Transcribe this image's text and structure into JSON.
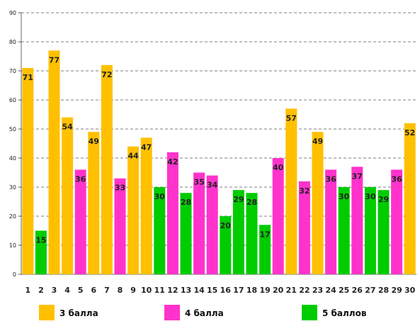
{
  "chart_data": {
    "type": "bar",
    "title": "",
    "xlabel": "",
    "ylabel": "",
    "ylim": [
      0,
      90
    ],
    "y_ticks": [
      0,
      10,
      20,
      30,
      40,
      50,
      60,
      70,
      80,
      90
    ],
    "grid": "horizontal-dashed",
    "legend_placement": "bottom",
    "categories": [
      "1",
      "2",
      "3",
      "4",
      "5",
      "6",
      "7",
      "8",
      "9",
      "10",
      "11",
      "12",
      "13",
      "14",
      "15",
      "16",
      "17",
      "18",
      "19",
      "20",
      "21",
      "22",
      "23",
      "24",
      "25",
      "26",
      "27",
      "28",
      "29",
      "30"
    ],
    "values": [
      71,
      15,
      77,
      54,
      36,
      49,
      72,
      33,
      44,
      47,
      30,
      42,
      28,
      35,
      34,
      20,
      29,
      28,
      17,
      40,
      57,
      32,
      49,
      36,
      30,
      37,
      30,
      29,
      36,
      52
    ],
    "groups": [
      "3",
      "5",
      "3",
      "3",
      "4",
      "3",
      "3",
      "4",
      "3",
      "3",
      "5",
      "4",
      "5",
      "4",
      "4",
      "5",
      "5",
      "5",
      "5",
      "4",
      "3",
      "4",
      "3",
      "4",
      "5",
      "4",
      "5",
      "5",
      "4",
      "3"
    ],
    "series": [
      {
        "key": "3",
        "name": "3 балла",
        "color": "#FFC000"
      },
      {
        "key": "4",
        "name": "4 балла",
        "color": "#FF33CC"
      },
      {
        "key": "5",
        "name": "5 баллов",
        "color": "#00CC00"
      }
    ]
  }
}
